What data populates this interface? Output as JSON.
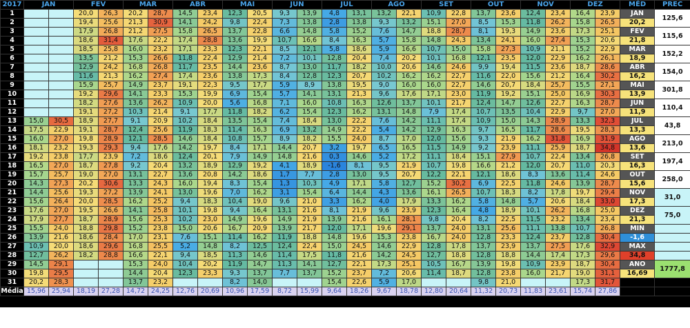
{
  "table": {
    "header": [
      "2017",
      "JAN",
      "FEV",
      "MAR",
      "ABR",
      "MAI",
      "JUN",
      "JUL",
      "AGO",
      "SET",
      "OUT",
      "NOV",
      "DEZ"
    ],
    "rows": [
      [
        "1",
        null,
        null,
        "20,0",
        "26,3",
        "20,2",
        "28,7",
        "14,5",
        "23,4",
        "12,3",
        "20,5",
        "9,3",
        "13,9",
        "4,8",
        "13,1",
        "13,2",
        "22,1",
        "10,9",
        "22,8",
        "13,7",
        "23,6",
        "12,4",
        "23,4",
        "16,4",
        "23,9"
      ],
      [
        "2",
        null,
        null,
        "19,4",
        "25,6",
        "21,3",
        "30,9",
        "14,1",
        "24,2",
        "9,8",
        "22,4",
        "7,3",
        "13,8",
        "2,8",
        "13,8",
        "9,3",
        "13,2",
        "15,1",
        "27,0",
        "8,5",
        "15,3",
        "11,8",
        "26,2",
        "15,8",
        "26,5"
      ],
      [
        "3",
        null,
        null,
        "17,9",
        "26,8",
        "21,2",
        "27,5",
        "15,8",
        "26,5",
        "13,7",
        "22,8",
        "6,6",
        "14,8",
        "5,8",
        "15,2",
        "7,6",
        "14,7",
        "18,8",
        "28,7",
        "8,1",
        "19,3",
        "14,9",
        "23,6",
        "17,3",
        "25,1"
      ],
      [
        "4",
        null,
        null,
        "18,6",
        "31,4",
        "17,6",
        "22,2",
        "17,4",
        "28,8",
        "13,6",
        "19,9",
        "10,7",
        "16,6",
        "8,4",
        "16,3",
        "5,7",
        "15,8",
        "14,8",
        "24,3",
        "13,4",
        "24,1",
        "16,0",
        "27,4",
        "15,3",
        "20,6"
      ],
      [
        "5",
        null,
        null,
        "18,5",
        "25,8",
        "16,0",
        "23,2",
        "17,1",
        "23,3",
        "12,3",
        "22,1",
        "8,5",
        "12,1",
        "5,8",
        "18,6",
        "5,9",
        "16,6",
        "10,7",
        "15,0",
        "15,8",
        "27,3",
        "10,9",
        "21,1",
        "15,2",
        "22,9"
      ],
      [
        "6",
        null,
        null,
        "13,5",
        "21,2",
        "15,3",
        "26,6",
        "11,8",
        "22,4",
        "12,9",
        "21,4",
        "7,2",
        "10,1",
        "12,8",
        "20,4",
        "7,4",
        "20,2",
        "10,1",
        "16,8",
        "12,1",
        "23,5",
        "12,0",
        "22,9",
        "16,2",
        "26,1"
      ],
      [
        "7",
        null,
        null,
        "12,9",
        "24,2",
        "16,8",
        "26,8",
        "11,7",
        "23,5",
        "14,4",
        "23,6",
        "8,7",
        "13,0",
        "11,7",
        "18,2",
        "10,0",
        "20,6",
        "14,6",
        "24,6",
        "9,9",
        "19,4",
        "11,5",
        "23,6",
        "18,7",
        "28,6"
      ],
      [
        "8",
        null,
        null,
        "11,6",
        "21,3",
        "16,2",
        "27,4",
        "17,4",
        "23,6",
        "13,8",
        "17,3",
        "8,4",
        "12,8",
        "12,3",
        "20,7",
        "10,2",
        "16,2",
        "16,2",
        "22,7",
        "11,6",
        "22,0",
        "15,6",
        "21,2",
        "16,4",
        "30,2"
      ],
      [
        "9",
        null,
        null,
        "15,9",
        "25,7",
        "14,9",
        "23,7",
        "19,1",
        "22,3",
        "9,5",
        "17,7",
        "5,9",
        "8,9",
        "13,8",
        "19,5",
        "9,0",
        "16,0",
        "16,0",
        "22,7",
        "14,6",
        "20,7",
        "18,4",
        "25,7",
        "15,5",
        "27,1"
      ],
      [
        "10",
        null,
        null,
        "19,2",
        "29,6",
        "14,1",
        "23,3",
        "15,3",
        "19,9",
        "6,9",
        "15,4",
        "5,7",
        "14,1",
        "13,1",
        "21,3",
        "9,6",
        "17,6",
        "17,1",
        "23,0",
        "11,9",
        "19,2",
        "15,1",
        "25,0",
        "16,9",
        "30,3"
      ],
      [
        "11",
        null,
        null,
        "18,2",
        "27,6",
        "13,6",
        "26,2",
        "10,9",
        "20,0",
        "5,6",
        "16,8",
        "7,1",
        "16,0",
        "10,8",
        "16,3",
        "12,6",
        "13,7",
        "10,1",
        "21,7",
        "12,4",
        "14,7",
        "12,6",
        "22,7",
        "16,3",
        "28,7"
      ],
      [
        "12",
        null,
        null,
        "19,1",
        "27,2",
        "10,3",
        "21,4",
        "9,1",
        "17,7",
        "11,8",
        "18,2",
        "6,2",
        "15,4",
        "12,3",
        "16,2",
        "13,1",
        "14,8",
        "7,9",
        "17,4",
        "10,7",
        "13,5",
        "10,4",
        "22,9",
        "9,7",
        "27,0"
      ],
      [
        "13",
        "15,0",
        "30,5",
        "18,9",
        "27,7",
        "9,1",
        "20,9",
        "10,2",
        "18,4",
        "13,5",
        "15,4",
        "7,4",
        "18,4",
        "13,0",
        "22,2",
        "7,6",
        "14,2",
        "11,1",
        "17,4",
        "10,9",
        "15,0",
        "14,3",
        "28,9",
        "13,3",
        "32,3"
      ],
      [
        "14",
        "17,5",
        "22,9",
        "19,1",
        "28,7",
        "12,4",
        "25,6",
        "11,9",
        "18,3",
        "11,4",
        "16,3",
        "6,9",
        "13,2",
        "14,9",
        "22,2",
        "5,4",
        "14,2",
        "12,9",
        "16,3",
        "9,7",
        "16,5",
        "11,7",
        "28,6",
        "19,5",
        "28,3"
      ],
      [
        "15",
        "16,0",
        "27,0",
        "19,8",
        "28,9",
        "12,1",
        "28,5",
        "14,6",
        "18,4",
        "10,8",
        "15,7",
        "8,9",
        "18,2",
        "15,5",
        "24,0",
        "8,7",
        "17,0",
        "12,0",
        "15,6",
        "9,3",
        "21,9",
        "16,2",
        "31,8",
        "16,9",
        "31,9"
      ],
      [
        "16",
        "18,1",
        "23,2",
        "19,3",
        "29,3",
        "9,4",
        "17,6",
        "14,2",
        "19,7",
        "8,4",
        "17,1",
        "14,4",
        "20,7",
        "3,2",
        "19,7",
        "6,5",
        "16,5",
        "11,5",
        "14,9",
        "9,2",
        "23,9",
        "11,1",
        "25,9",
        "18,7",
        "34,8"
      ],
      [
        "17",
        "19,2",
        "23,8",
        "17,7",
        "23,9",
        "7,2",
        "18,6",
        "12,4",
        "20,1",
        "7,9",
        "14,9",
        "14,8",
        "21,6",
        "0,3",
        "14,6",
        "5,2",
        "17,2",
        "11,1",
        "18,4",
        "15,1",
        "27,9",
        "10,7",
        "22,4",
        "13,4",
        "26,8"
      ],
      [
        "18",
        "16,5",
        "27,0",
        "18,7",
        "27,8",
        "9,2",
        "20,4",
        "13,2",
        "18,9",
        "12,9",
        "19,2",
        "4,1",
        "18,9",
        "-1,6",
        "8,1",
        "9,5",
        "21,9",
        "10,7",
        "19,8",
        "16,6",
        "21,2",
        "12,0",
        "20,7",
        "11,0",
        "20,3"
      ],
      [
        "19",
        "15,7",
        "25,7",
        "19,0",
        "27,0",
        "13,1",
        "22,7",
        "13,6",
        "20,8",
        "14,2",
        "18,6",
        "1,7",
        "7,7",
        "2,8",
        "13,0",
        "9,5",
        "20,7",
        "12,2",
        "22,1",
        "12,1",
        "18,6",
        "8,3",
        "13,6",
        "11,4",
        "24,6"
      ],
      [
        "20",
        "14,3",
        "27,3",
        "20,2",
        "30,6",
        "13,3",
        "24,3",
        "16,0",
        "19,4",
        "8,3",
        "15,4",
        "1,3",
        "10,3",
        "4,9",
        "17,1",
        "5,8",
        "12,7",
        "15,2",
        "30,2",
        "6,9",
        "22,5",
        "11,8",
        "24,6",
        "13,9",
        "28,7"
      ],
      [
        "21",
        "14,4",
        "25,6",
        "19,3",
        "27,2",
        "13,9",
        "24,1",
        "13,0",
        "19,6",
        "7,0",
        "16,2",
        "3,1",
        "15,4",
        "6,4",
        "14,4",
        "4,3",
        "13,6",
        "16,1",
        "26,5",
        "10,7",
        "18,3",
        "8,2",
        "17,8",
        "19,7",
        "29,4"
      ],
      [
        "22",
        "15,6",
        "26,4",
        "20,0",
        "28,5",
        "16,2",
        "25,2",
        "9,4",
        "18,3",
        "10,4",
        "19,0",
        "9,6",
        "21,0",
        "3,3",
        "16,2",
        "4,0",
        "17,9",
        "13,3",
        "16,2",
        "5,8",
        "14,8",
        "5,7",
        "20,6",
        "18,4",
        "33,0"
      ],
      [
        "23",
        "17,6",
        "27,0",
        "19,5",
        "26,6",
        "14,1",
        "25,8",
        "10,1",
        "19,8",
        "9,4",
        "16,4",
        "13,1",
        "21,6",
        "8,1",
        "21,9",
        "9,6",
        "23,9",
        "12,3",
        "16,4",
        "4,8",
        "18,9",
        "10,1",
        "26,2",
        "16,8",
        "25,0"
      ],
      [
        "24",
        "17,9",
        "27,7",
        "18,7",
        "28,9",
        "15,6",
        "25,3",
        "10,2",
        "23,0",
        "14,9",
        "19,6",
        "14,9",
        "21,9",
        "13,9",
        "21,6",
        "16,1",
        "28,1",
        "9,8",
        "20,4",
        "8,2",
        "22,5",
        "11,5",
        "23,2",
        "13,4",
        "23,4"
      ],
      [
        "25",
        "15,5",
        "24,0",
        "18,8",
        "29,8",
        "15,2",
        "23,8",
        "15,0",
        "20,6",
        "16,7",
        "20,9",
        "13,9",
        "21,7",
        "12,0",
        "17,1",
        "19,6",
        "29,1",
        "13,7",
        "24,0",
        "13,1",
        "25,6",
        "11,1",
        "13,8",
        "10,7",
        "26,8"
      ],
      [
        "26",
        "13,9",
        "21,6",
        "18,6",
        "28,4",
        "17,0",
        "23,1",
        "7,6",
        "15,1",
        "11,4",
        "16,2",
        "11,9",
        "18,8",
        "14,8",
        "19,6",
        "15,3",
        "23,8",
        "16,7",
        "24,0",
        "12,8",
        "23,3",
        "12,4",
        "23,7",
        "12,8",
        "30,4"
      ],
      [
        "27",
        "10,9",
        "20,0",
        "18,6",
        "29,6",
        "16,8",
        "25,5",
        "5,2",
        "14,8",
        "8,2",
        "12,5",
        "12,4",
        "22,4",
        "15,0",
        "24,5",
        "14,6",
        "22,9",
        "12,8",
        "17,8",
        "13,7",
        "23,9",
        "13,7",
        "27,5",
        "17,6",
        "32,9"
      ],
      [
        "28",
        "12,7",
        "26,2",
        "18,2",
        "28,8",
        "16,6",
        "22,1",
        "9,4",
        "18,5",
        "11,3",
        "14,6",
        "11,4",
        "17,5",
        "11,8",
        "21,6",
        "14,2",
        "24,5",
        "12,7",
        "18,8",
        "12,8",
        "18,8",
        "14,4",
        "17,4",
        "17,3",
        "29,6"
      ],
      [
        "29",
        "14,5",
        "29,1",
        null,
        null,
        "15,3",
        "24,0",
        "10,4",
        "20,2",
        "11,9",
        "14,7",
        "11,3",
        "14,1",
        "12,7",
        "22,1",
        "17,3",
        "25,1",
        "10,5",
        "16,7",
        "13,9",
        "19,8",
        "10,9",
        "23,9",
        "18,7",
        "30,4"
      ],
      [
        "30",
        "19,8",
        "29,5",
        null,
        null,
        "14,4",
        "20,4",
        "12,3",
        "23,3",
        "9,3",
        "13,7",
        "7,7",
        "13,7",
        "15,2",
        "23,7",
        "7,2",
        "20,6",
        "11,4",
        "18,7",
        "12,8",
        "23,8",
        "16,0",
        "21,7",
        "19,0",
        "31,1"
      ],
      [
        "31",
        "20,2",
        "28,3",
        null,
        null,
        "13,7",
        "23,2",
        null,
        null,
        "8,2",
        "14,0",
        null,
        null,
        "15,4",
        "22,6",
        "5,9",
        "17,0",
        null,
        null,
        "9,8",
        "21,0",
        null,
        null,
        "17,3",
        "31,7"
      ]
    ],
    "footer": {
      "label": "Média",
      "values": [
        "15,96",
        "25,94",
        "18,19",
        "27,28",
        "14,72",
        "24,25",
        "12,76",
        "20,69",
        "10,96",
        "17,59",
        "8,72",
        "15,99",
        "9,64",
        "18,26",
        "9,67",
        "18,78",
        "12,80",
        "20,64",
        "11,32",
        "20,73",
        "11,83",
        "23,61",
        "15,74",
        "27,86"
      ]
    }
  },
  "summary": {
    "header": [
      "MÉD",
      "PREC"
    ],
    "months": [
      {
        "label": "JAN",
        "avg": "20,2",
        "prec": "125,6"
      },
      {
        "label": "FEV",
        "avg": "21,8",
        "prec": "115,6"
      },
      {
        "label": "MAR",
        "avg": "18,9",
        "prec": "152,2"
      },
      {
        "label": "ABR",
        "avg": "16,2",
        "prec": "154,0"
      },
      {
        "label": "MAI",
        "avg": "13,9",
        "prec": "301,8"
      },
      {
        "label": "JUN",
        "avg": "11,9",
        "prec": "110,4"
      },
      {
        "label": "JUL",
        "avg": "13,3",
        "prec": "43,8"
      },
      {
        "label": "AGO",
        "avg": "13,6",
        "prec": "213,0"
      },
      {
        "label": "SET",
        "avg": "16,3",
        "prec": "197,4"
      },
      {
        "label": "OUT",
        "avg": "15,6",
        "prec": "258,0"
      },
      {
        "label": "NOV",
        "avg": "17,3",
        "prec": "31,0"
      },
      {
        "label": "DEZ",
        "avg": "21,3",
        "prec": "75,0"
      }
    ],
    "min": {
      "label": "MIN",
      "value": "-1,6"
    },
    "max": {
      "label": "MAX",
      "value": "34,8"
    },
    "year": {
      "label": "ANO",
      "avg": "16,69",
      "prec": "1777,8"
    }
  }
}
